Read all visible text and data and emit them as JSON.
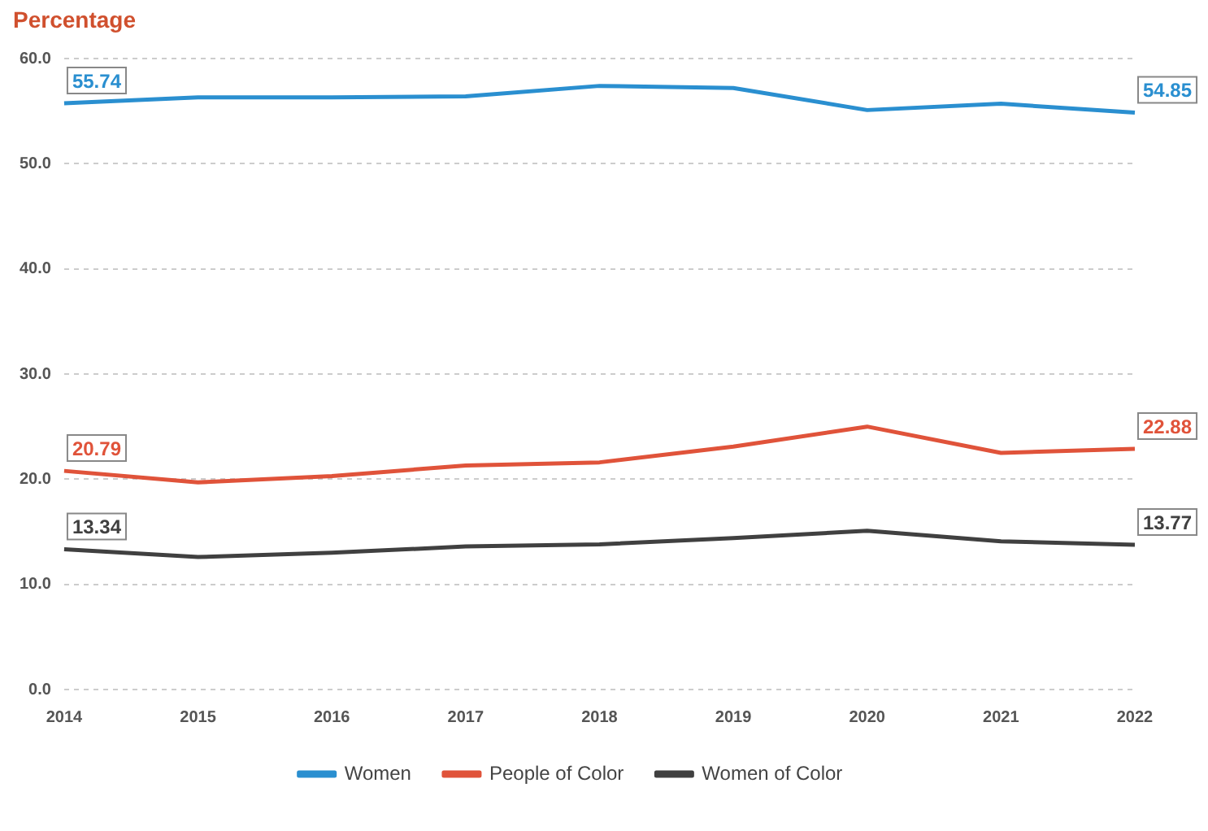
{
  "chart_data": {
    "type": "line",
    "title": "Percentage",
    "categories": [
      "2014",
      "2015",
      "2016",
      "2017",
      "2018",
      "2019",
      "2020",
      "2021",
      "2022"
    ],
    "series": [
      {
        "name": "Women",
        "color": "#2a8fd0",
        "values": [
          55.74,
          56.3,
          56.3,
          56.4,
          57.4,
          57.2,
          55.1,
          55.7,
          54.85
        ],
        "value_labels": [
          "55.74",
          null,
          null,
          null,
          null,
          null,
          null,
          null,
          "54.85"
        ]
      },
      {
        "name": "People of Color",
        "color": "#e0533a",
        "values": [
          20.79,
          19.7,
          20.3,
          21.3,
          21.6,
          23.1,
          25.0,
          22.5,
          22.88
        ],
        "value_labels": [
          "20.79",
          null,
          null,
          null,
          null,
          null,
          null,
          null,
          "22.88"
        ]
      },
      {
        "name": "Women of Color",
        "color": "#404040",
        "values": [
          13.34,
          12.6,
          13.0,
          13.6,
          13.8,
          14.4,
          15.1,
          14.1,
          13.77
        ],
        "value_labels": [
          "13.34",
          null,
          null,
          null,
          null,
          null,
          null,
          null,
          "13.77"
        ]
      }
    ],
    "ylim": [
      0,
      60
    ],
    "yticks": [
      {
        "value": 0,
        "label": "0.0"
      },
      {
        "value": 10,
        "label": "10.0"
      },
      {
        "value": 20,
        "label": "20.0"
      },
      {
        "value": 30,
        "label": "30.0"
      },
      {
        "value": 40,
        "label": "40.0"
      },
      {
        "value": 50,
        "label": "50.0"
      },
      {
        "value": 60,
        "label": "60.0"
      }
    ],
    "grid": "y",
    "legend": "bottom",
    "marker": "none",
    "line_style": "solid"
  }
}
